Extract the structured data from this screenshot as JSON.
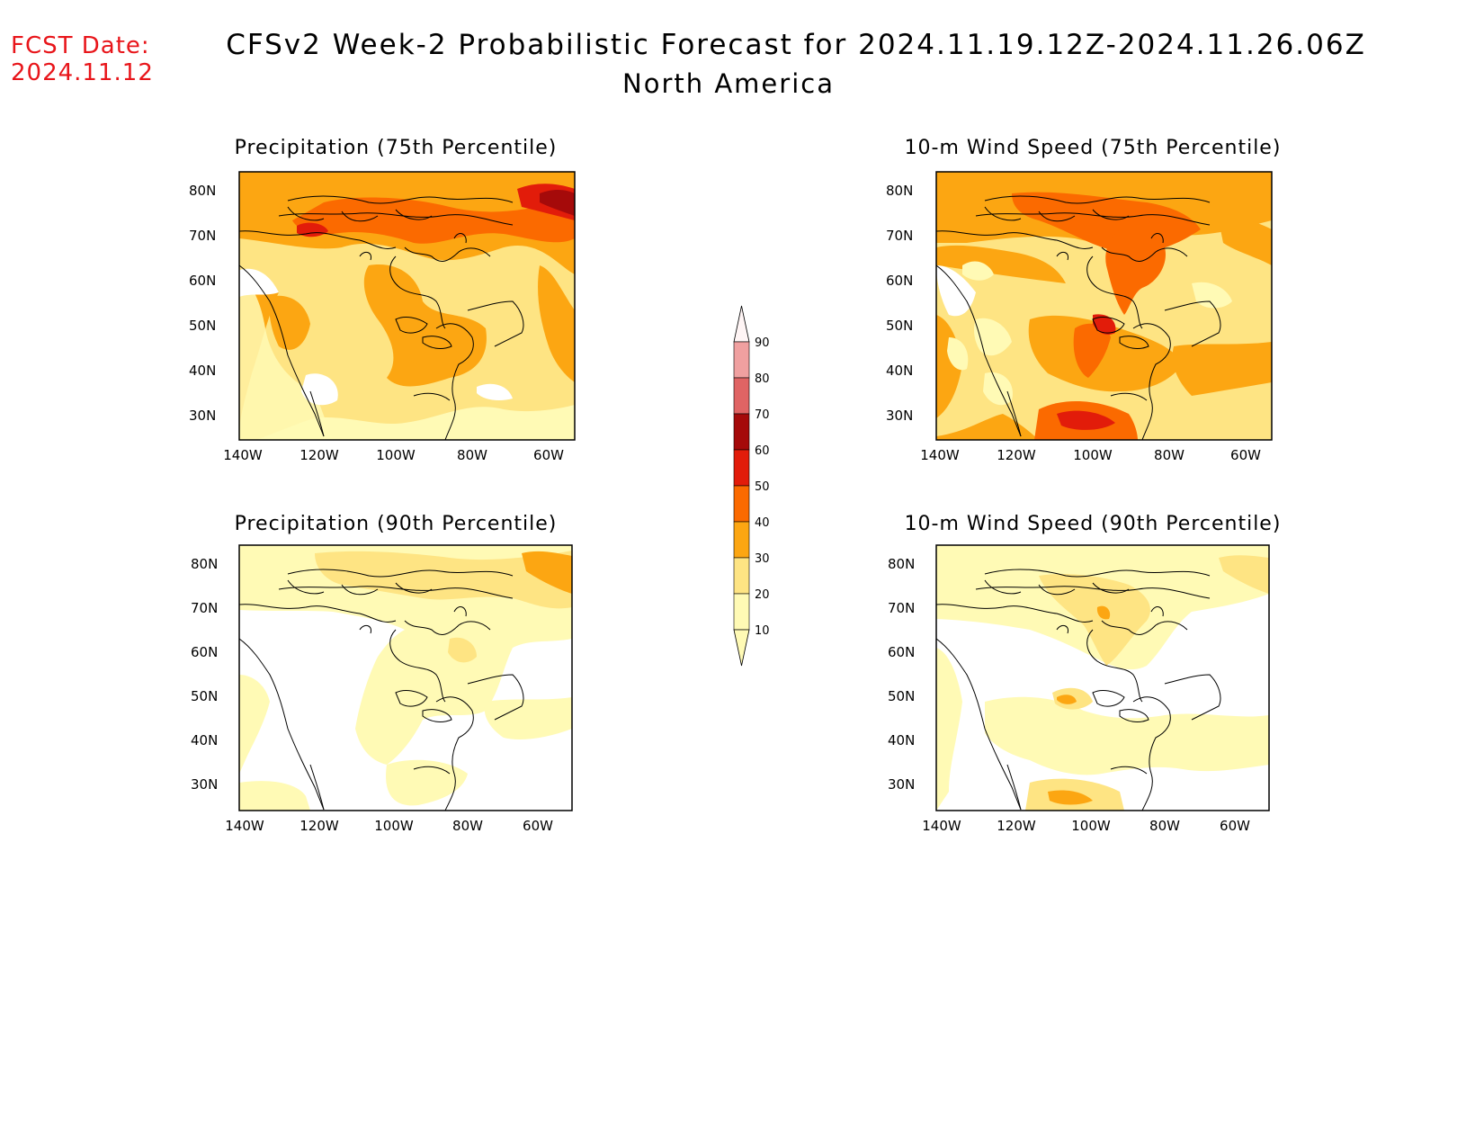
{
  "header": {
    "fcst_label": "FCST Date:",
    "fcst_date": "2024.11.12",
    "title": "CFSv2 Week-2 Probabilistic Forecast for 2024.11.19.12Z-2024.11.26.06Z",
    "subtitle": "North America"
  },
  "panels": [
    {
      "title": "Precipitation (75th Percentile)"
    },
    {
      "title": "10-m Wind Speed (75th Percentile)"
    },
    {
      "title": "Precipitation (90th Percentile)"
    },
    {
      "title": "10-m Wind Speed (90th Percentile)"
    }
  ],
  "axes": {
    "lat_ticks": [
      "80N",
      "70N",
      "60N",
      "50N",
      "40N",
      "30N"
    ],
    "lon_ticks": [
      "140W",
      "120W",
      "100W",
      "80W",
      "60W"
    ]
  },
  "colorbar": {
    "labels": [
      "90",
      "80",
      "70",
      "60",
      "50",
      "40",
      "30",
      "20",
      "10"
    ],
    "colors": [
      "#fff5f5",
      "#f0a0a0",
      "#e06464",
      "#a50a0a",
      "#e21c0a",
      "#fb6a00",
      "#fca612",
      "#fee483",
      "#fffab5"
    ]
  },
  "palette": {
    "p10": "#fffab5",
    "p20": "#fee483",
    "p30": "#fca612",
    "p40": "#fb6a00",
    "p50": "#e21c0a",
    "p60": "#a50a0a"
  }
}
